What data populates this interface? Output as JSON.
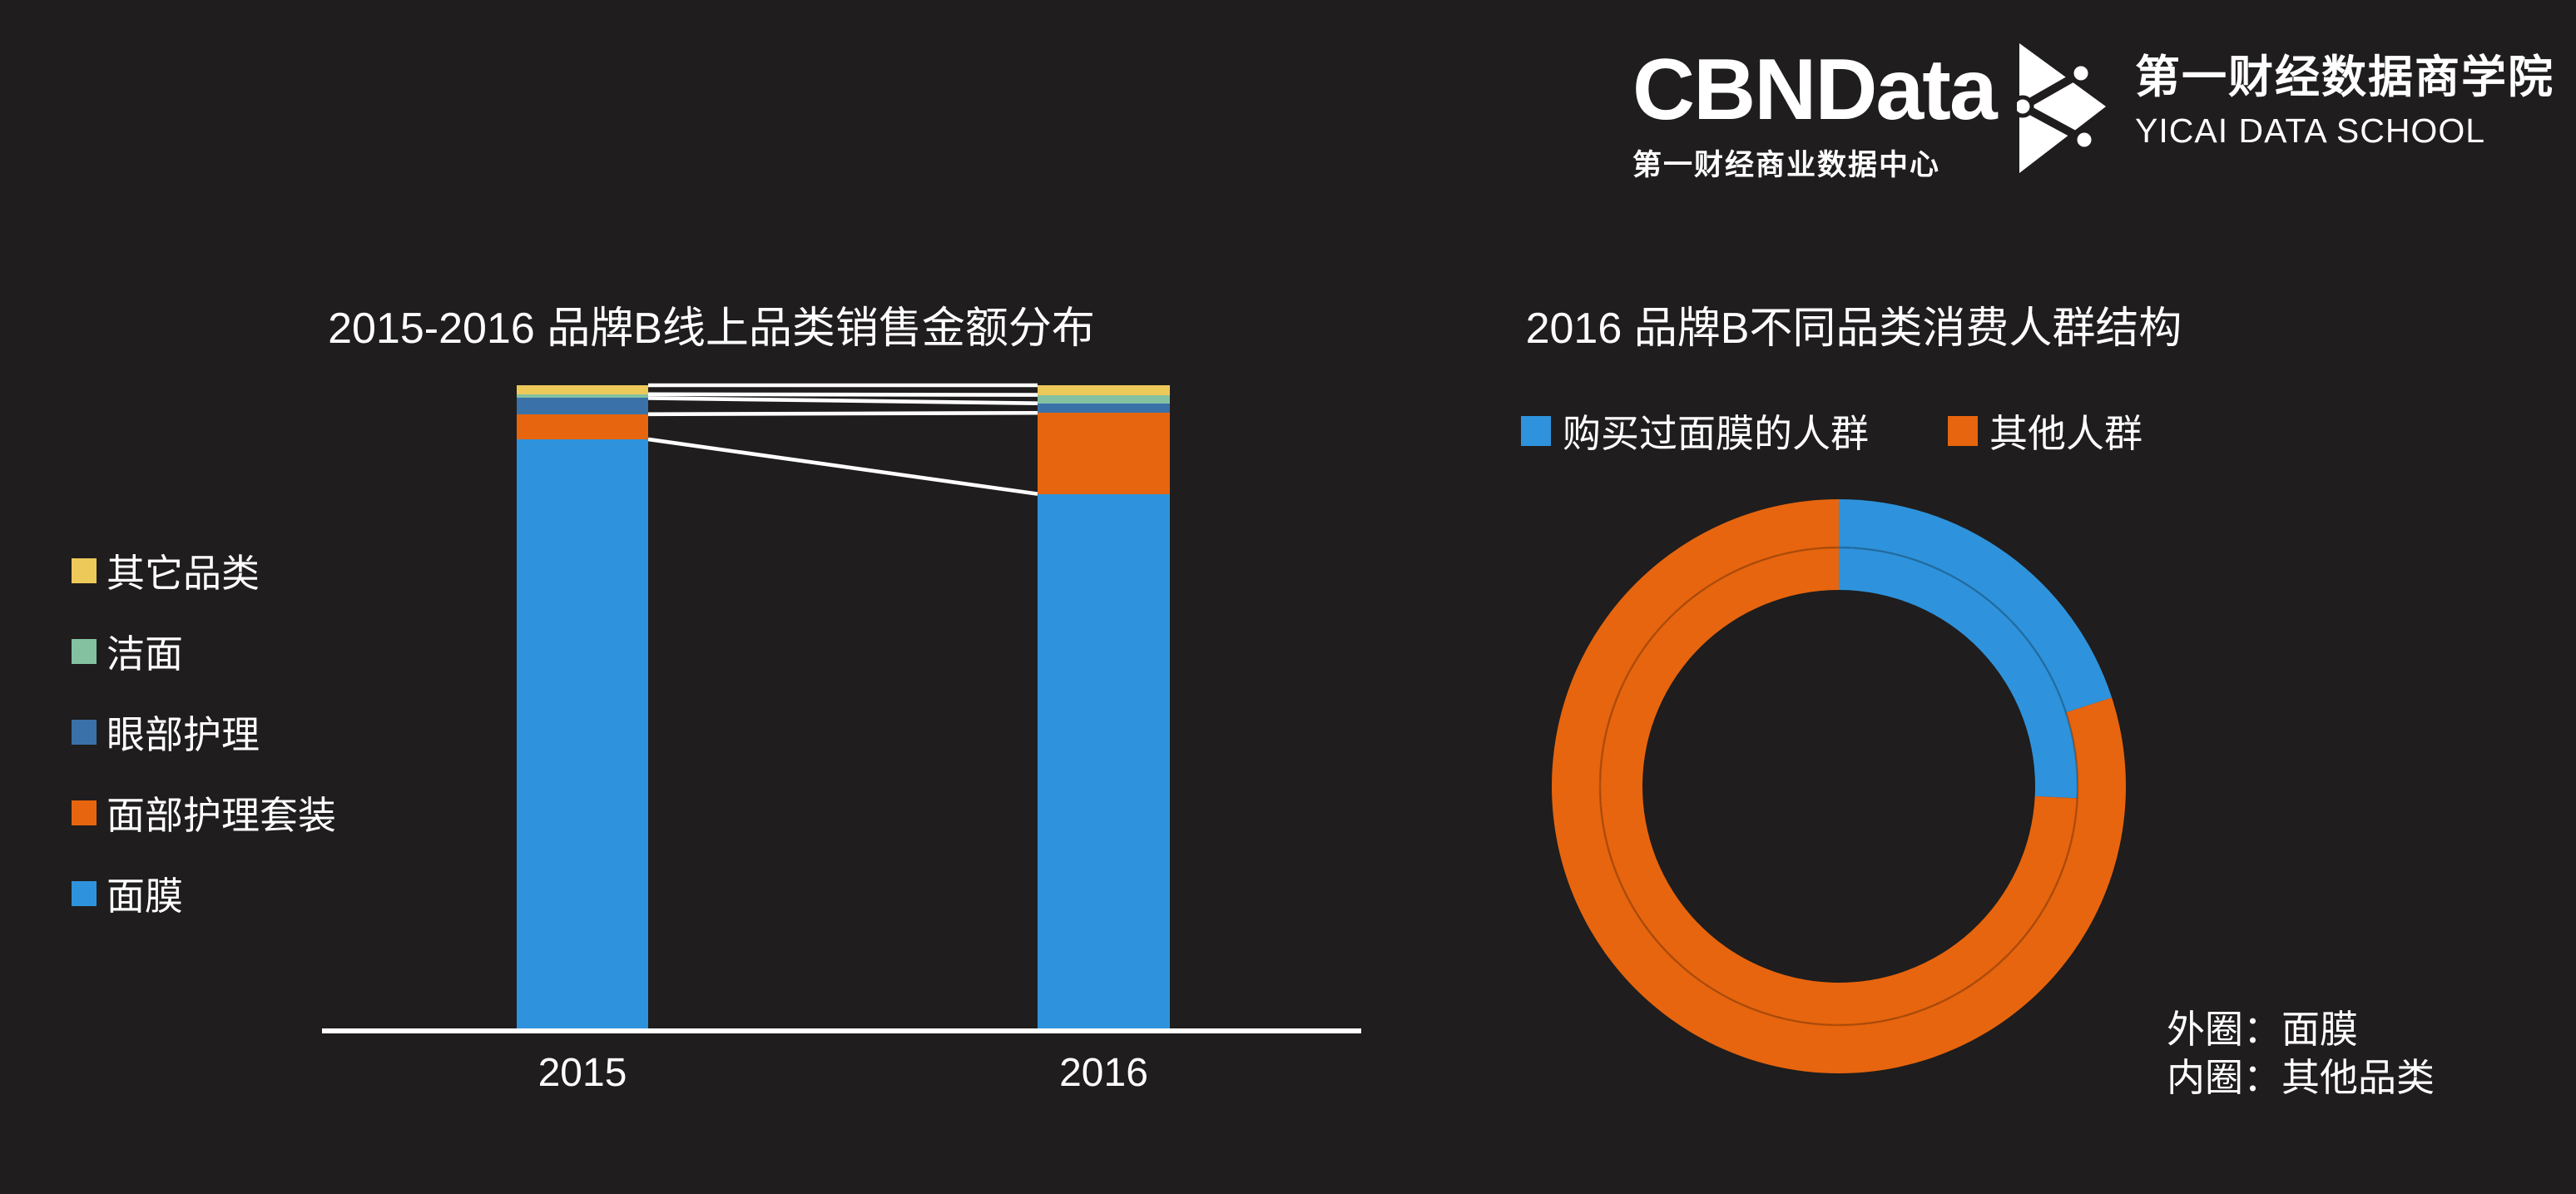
{
  "page": {
    "background": "#1F1D1D",
    "text_color": "#FFFFFF"
  },
  "branding": {
    "wordmark": "CBNData",
    "wordmark_subtitle": "第一财经商业数据中心",
    "logo_mark": "yicai-triangle-network",
    "school_name_cn": "第一财经数据商学院",
    "school_name_en": "YICAI DATA SCHOOL"
  },
  "colors": {
    "background": "#1F1D1D",
    "blue": "#2E93DC",
    "orange": "#E7650E",
    "steel_blue": "#3A71A9",
    "green": "#84C1A1",
    "yellow": "#EDC95A",
    "white": "#FFFFFF"
  },
  "chart_data": [
    {
      "type": "bar",
      "variant": "stacked-percent-columns-with-connectors",
      "title": "2015-2016 品牌B线上品类销售金额分布",
      "categories": [
        "2015",
        "2016"
      ],
      "series": [
        {
          "name": "面膜",
          "color": "#2E93DC",
          "values": [
            91.6,
            83.1
          ]
        },
        {
          "name": "面部护理套装",
          "color": "#E7650E",
          "values": [
            3.9,
            12.6
          ]
        },
        {
          "name": "眼部护理",
          "color": "#3A71A9",
          "values": [
            2.5,
            1.5
          ]
        },
        {
          "name": "洁面",
          "color": "#84C1A1",
          "values": [
            0.6,
            1.3
          ]
        },
        {
          "name": "其它品类",
          "color": "#EDC95A",
          "values": [
            1.4,
            1.5
          ]
        }
      ],
      "stack_note": "series listed bottom-to-top",
      "legend": [
        "其它品类",
        "洁面",
        "眼部护理",
        "面部护理套装",
        "面膜"
      ],
      "legend_position": "left",
      "ylim": [
        0,
        100
      ],
      "gridlines": false,
      "connector_lines": true,
      "axis_color": "#FFFFFF"
    },
    {
      "type": "pie",
      "variant": "double-donut",
      "title": "2016 品牌B不同品类消费人群结构",
      "legend": [
        {
          "label": "购买过面膜的人群",
          "color": "#2E93DC"
        },
        {
          "label": "其他人群",
          "color": "#E7650E"
        }
      ],
      "legend_position": "top",
      "start_angle_deg": 0,
      "rings": [
        {
          "name": "外圈",
          "category": "面膜",
          "slices": [
            {
              "label": "购买过面膜的人群",
              "value": 20.0
            },
            {
              "label": "其他人群",
              "value": 80.0
            }
          ]
        },
        {
          "name": "内圈",
          "category": "其他品类",
          "slices": [
            {
              "label": "购买过面膜的人群",
              "value": 25.8
            },
            {
              "label": "其他人群",
              "value": 74.2
            }
          ]
        }
      ],
      "note_lines": [
        "外圈：面膜",
        "内圈：其他品类"
      ]
    }
  ]
}
